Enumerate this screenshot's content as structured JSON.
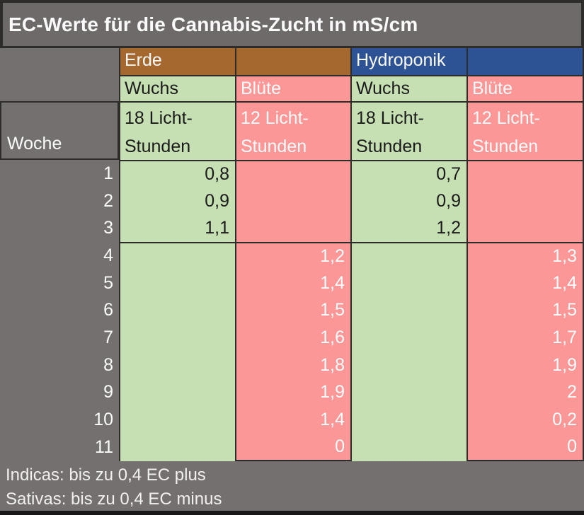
{
  "title": "EC-Werte für die Cannabis-Zucht in mS/cm",
  "table": {
    "week_label": "Woche",
    "groups": [
      {
        "label": "Erde"
      },
      {
        "label": "Hydroponik"
      }
    ],
    "phase_headers": [
      "Wuchs",
      "Blüte",
      "Wuchs",
      "Blüte"
    ],
    "light_headers": [
      {
        "line1": "18 Licht-",
        "line2": "Stunden"
      },
      {
        "line1": "12 Licht-",
        "line2": "Stunden"
      },
      {
        "line1": "18 Licht-",
        "line2": "Stunden"
      },
      {
        "line1": "12 Licht-",
        "line2": "Stunden"
      }
    ],
    "rows": [
      {
        "week": "1",
        "erde_wuchs": "0,8",
        "erde_bluete": "",
        "hydro_wuchs": "0,7",
        "hydro_bluete": ""
      },
      {
        "week": "2",
        "erde_wuchs": "0,9",
        "erde_bluete": "",
        "hydro_wuchs": "0,9",
        "hydro_bluete": ""
      },
      {
        "week": "3",
        "erde_wuchs": "1,1",
        "erde_bluete": "",
        "hydro_wuchs": "1,2",
        "hydro_bluete": ""
      },
      {
        "week": "4",
        "erde_wuchs": "",
        "erde_bluete": "1,2",
        "hydro_wuchs": "",
        "hydro_bluete": "1,3"
      },
      {
        "week": "5",
        "erde_wuchs": "",
        "erde_bluete": "1,4",
        "hydro_wuchs": "",
        "hydro_bluete": "1,4"
      },
      {
        "week": "6",
        "erde_wuchs": "",
        "erde_bluete": "1,5",
        "hydro_wuchs": "",
        "hydro_bluete": "1,5"
      },
      {
        "week": "7",
        "erde_wuchs": "",
        "erde_bluete": "1,6",
        "hydro_wuchs": "",
        "hydro_bluete": "1,7"
      },
      {
        "week": "8",
        "erde_wuchs": "",
        "erde_bluete": "1,8",
        "hydro_wuchs": "",
        "hydro_bluete": "1,9"
      },
      {
        "week": "9",
        "erde_wuchs": "",
        "erde_bluete": "1,9",
        "hydro_wuchs": "",
        "hydro_bluete": "2"
      },
      {
        "week": "10",
        "erde_wuchs": "",
        "erde_bluete": "1,4",
        "hydro_wuchs": "",
        "hydro_bluete": "0,2"
      },
      {
        "week": "11",
        "erde_wuchs": "",
        "erde_bluete": "0",
        "hydro_wuchs": "",
        "hydro_bluete": "0"
      }
    ]
  },
  "footer": {
    "line1": "Indicas: bis zu 0,4 EC plus",
    "line2": "Sativas: bis zu 0,4 EC minus"
  },
  "colors": {
    "erde_header": "#a5682e",
    "hydroponik_header": "#2e5394",
    "wuchs_cell": "#c6dfb3",
    "bluete_cell": "#fc9797",
    "background_gray": "#757070",
    "grid_line": "#2e2b2b"
  },
  "chart_data": {
    "type": "table",
    "title": "EC-Werte für die Cannabis-Zucht in mS/cm",
    "columns": [
      "Woche",
      "Erde Wuchs (18 Licht-Stunden)",
      "Erde Blüte (12 Licht-Stunden)",
      "Hydroponik Wuchs (18 Licht-Stunden)",
      "Hydroponik Blüte (12 Licht-Stunden)"
    ],
    "rows": [
      [
        1,
        0.8,
        null,
        0.7,
        null
      ],
      [
        2,
        0.9,
        null,
        0.9,
        null
      ],
      [
        3,
        1.1,
        null,
        1.2,
        null
      ],
      [
        4,
        null,
        1.2,
        null,
        1.3
      ],
      [
        5,
        null,
        1.4,
        null,
        1.4
      ],
      [
        6,
        null,
        1.5,
        null,
        1.5
      ],
      [
        7,
        null,
        1.6,
        null,
        1.7
      ],
      [
        8,
        null,
        1.8,
        null,
        1.9
      ],
      [
        9,
        null,
        1.9,
        null,
        2
      ],
      [
        10,
        null,
        1.4,
        null,
        0.2
      ],
      [
        11,
        null,
        0,
        null,
        0
      ]
    ],
    "notes": [
      "Indicas: bis zu 0,4 EC plus",
      "Sativas: bis zu 0,4 EC minus"
    ],
    "unit": "mS/cm"
  }
}
